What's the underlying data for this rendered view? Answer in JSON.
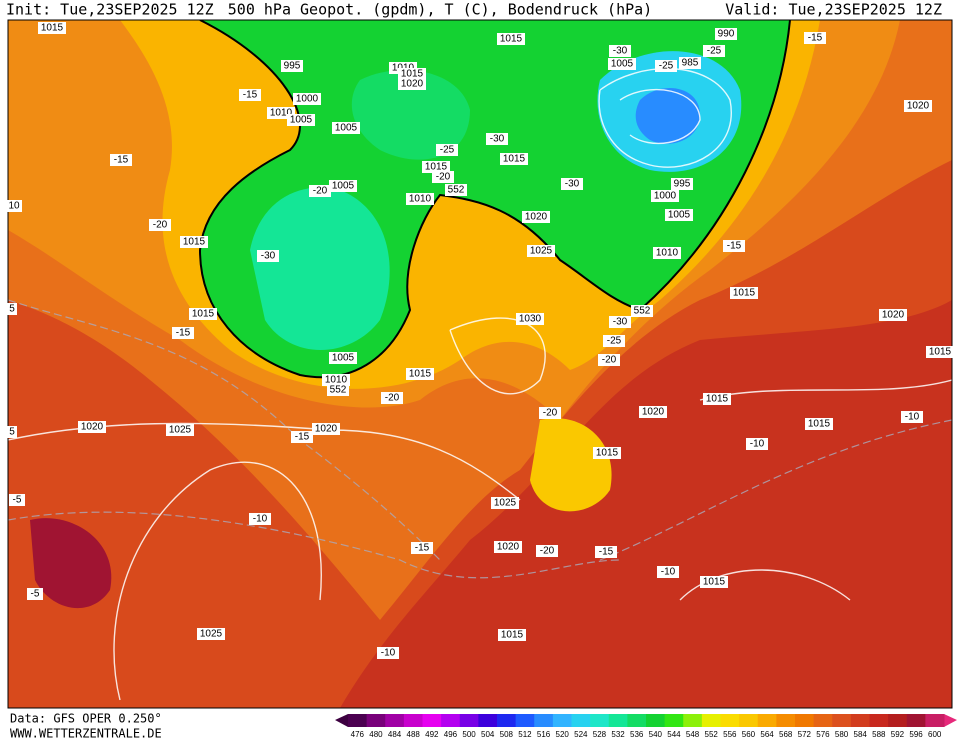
{
  "header": {
    "init": "Init: Tue,23SEP2025 12Z",
    "title": "500 hPa Geopot. (gpdm), T (C), Bodendruck (hPa)",
    "valid": "Valid: Tue,23SEP2025 12Z"
  },
  "footer": {
    "source": "Data: GFS OPER 0.250°",
    "site": "WWW.WETTERZENTRALE.DE"
  },
  "map": {
    "labels": [
      "1015",
      "995",
      "1010",
      "1015",
      "1020",
      "1000",
      "1010",
      "1005",
      "1005",
      "-15",
      "1015",
      "990",
      "-30",
      "-25",
      "1005",
      "985",
      "-25",
      "-30",
      "-25",
      "1015",
      "1015",
      "-20",
      "-15",
      "1005",
      "-20",
      "1010",
      "552",
      "-30",
      "995",
      "1000",
      "1005",
      "1020",
      "-20",
      "1015",
      "-30",
      "1025",
      "1010",
      "-15",
      "1015",
      "-15",
      "1020",
      "1015",
      "-15",
      "1030",
      "552",
      "-30",
      "1020",
      "-25",
      "-20",
      "1015",
      "1005",
      "1010",
      "552",
      "1015",
      "-20",
      "-20",
      "1020",
      "1015",
      "1015",
      "-10",
      "-10",
      "1020",
      "1025",
      "-15",
      "1020",
      "1015",
      "-5",
      "1025",
      "-10",
      "-15",
      "1020",
      "-20",
      "-15",
      "-10",
      "1015",
      "-5",
      "1025",
      "1015",
      "-10",
      "10",
      "5",
      "5"
    ]
  },
  "colorbar": {
    "labels": [
      "476",
      "480",
      "484",
      "488",
      "492",
      "496",
      "500",
      "504",
      "508",
      "512",
      "516",
      "520",
      "524",
      "528",
      "532",
      "536",
      "540",
      "544",
      "548",
      "552",
      "556",
      "560",
      "564",
      "568",
      "572",
      "576",
      "580",
      "584",
      "588",
      "592",
      "596",
      "600"
    ],
    "colors": [
      "#4b0050",
      "#78007a",
      "#a000a5",
      "#c800cd",
      "#e600f0",
      "#b400f0",
      "#7800e6",
      "#3c00dc",
      "#1e28f0",
      "#1e5aff",
      "#288cff",
      "#32b4ff",
      "#28d2f0",
      "#1ee6c8",
      "#14e696",
      "#14dc64",
      "#14d232",
      "#32e614",
      "#8cf00a",
      "#e6f000",
      "#fadc00",
      "#fac800",
      "#faaa00",
      "#f58c00",
      "#f07800",
      "#e66414",
      "#dc501e",
      "#d23c1e",
      "#c8281e",
      "#b41e1e",
      "#a01432",
      "#c81e64"
    ]
  }
}
